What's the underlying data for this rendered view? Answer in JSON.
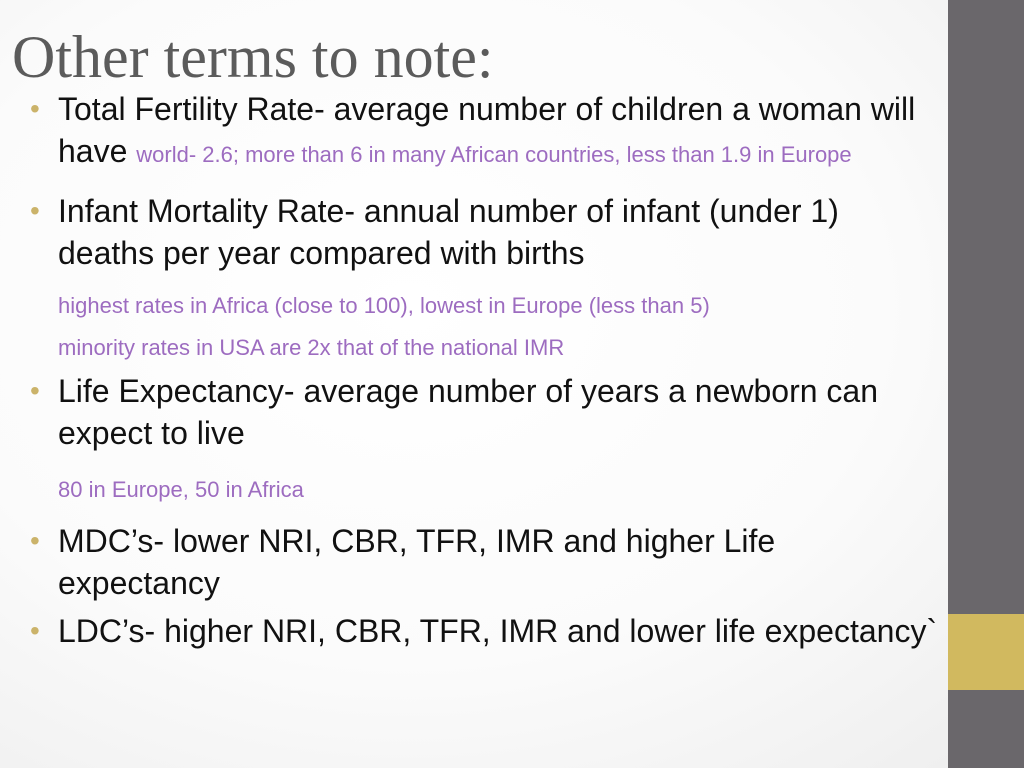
{
  "slide": {
    "title": "Other terms to note:",
    "bullets": [
      {
        "text": "Total Fertility Rate- average number of children a woman will have",
        "note": "world- 2.6; more than 6 in many African countries, less than 1.9 in Europe"
      },
      {
        "text": "Infant Mortality Rate- annual number of infant (under 1) deaths per year compared with births",
        "notes": [
          "highest rates in Africa (close to 100), lowest in Europe (less than 5)",
          "minority rates in USA are 2x that of the national IMR"
        ]
      },
      {
        "text": "Life Expectancy- average number of years a newborn can expect to live",
        "notes": [
          "80 in Europe, 50 in Africa"
        ]
      },
      {
        "text": "MDC’s- lower NRI, CBR, TFR, IMR and higher Life expectancy"
      },
      {
        "text": "LDC’s- higher NRI, CBR, TFR, IMR and lower life expectancy`"
      }
    ]
  },
  "colors": {
    "title": "#5b5b5b",
    "text": "#111111",
    "note": "#9d6cc0",
    "bullet": "#cbb36a",
    "side_bar": "#6a676b",
    "side_accent": "#d1b95f"
  }
}
